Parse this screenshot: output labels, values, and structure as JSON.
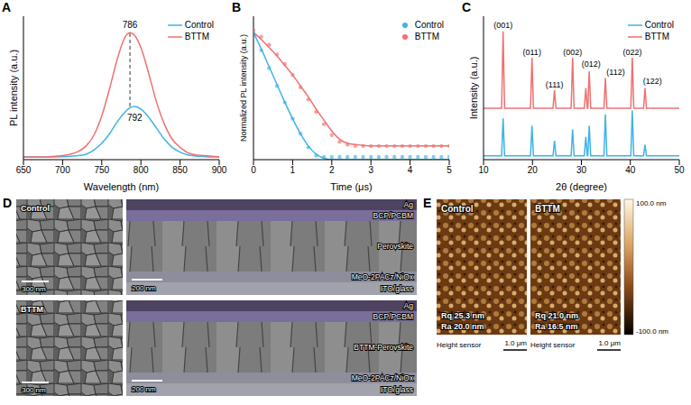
{
  "chart_data": [
    {
      "panel": "A",
      "type": "line",
      "x_label": "Wavelength (nm)",
      "y_label": "PL intensity (a.u.)",
      "x": [
        650,
        660,
        670,
        680,
        690,
        700,
        710,
        720,
        730,
        740,
        750,
        760,
        770,
        780,
        786,
        792,
        800,
        810,
        820,
        830,
        840,
        850,
        860,
        870,
        880,
        890,
        900
      ],
      "series": [
        {
          "name": "Control",
          "color": "#3fb3e6",
          "values": [
            0.02,
            0.02,
            0.02,
            0.02,
            0.02,
            0.022,
            0.025,
            0.03,
            0.04,
            0.07,
            0.12,
            0.19,
            0.28,
            0.35,
            0.38,
            0.39,
            0.37,
            0.31,
            0.23,
            0.15,
            0.09,
            0.055,
            0.035,
            0.027,
            0.023,
            0.02,
            0.02
          ]
        },
        {
          "name": "BTTM",
          "color": "#f07070",
          "values": [
            0.02,
            0.02,
            0.02,
            0.02,
            0.025,
            0.03,
            0.04,
            0.06,
            0.1,
            0.18,
            0.32,
            0.52,
            0.74,
            0.9,
            0.93,
            0.91,
            0.82,
            0.63,
            0.42,
            0.26,
            0.15,
            0.09,
            0.05,
            0.035,
            0.03,
            0.025,
            0.02
          ]
        }
      ],
      "xlim": [
        650,
        900
      ],
      "xticks": [
        650,
        700,
        750,
        800,
        850,
        900
      ],
      "ylim": [
        0,
        1.05
      ],
      "yticks": [],
      "tick_labels": "x",
      "legend": "upper right",
      "annotations": [
        {
          "text": "786",
          "x": 786,
          "y": 0.99
        },
        {
          "text": "792",
          "x": 792,
          "y": 0.31
        }
      ]
    },
    {
      "panel": "B",
      "type": "scatter",
      "x_label": "Time (μs)",
      "y_label": "Normalized PL intensity (a.u.)",
      "x": [
        0,
        0.2,
        0.4,
        0.6,
        0.8,
        1,
        1.2,
        1.4,
        1.6,
        1.8,
        2,
        2.2,
        2.4,
        2.6,
        2.8,
        3,
        3.2,
        3.4,
        3.6,
        3.8,
        4,
        4.2,
        4.4,
        4.6,
        4.8,
        5
      ],
      "series": [
        {
          "name": "Control",
          "color": "#3fb3e6",
          "marker": "circle",
          "values": [
            0.93,
            0.8,
            0.67,
            0.54,
            0.42,
            0.3,
            0.19,
            0.09,
            0.03,
            0.02,
            0.02,
            0.02,
            0.02,
            0.02,
            0.02,
            0.02,
            0.02,
            0.02,
            0.02,
            0.02,
            0.02,
            0.02,
            0.02,
            0.02,
            0.02,
            0.02
          ],
          "fit": [
            0.93,
            0.81,
            0.68,
            0.55,
            0.42,
            0.3,
            0.19,
            0.1,
            0.04,
            0.01,
            0,
            0,
            0,
            0,
            0,
            0,
            0,
            0,
            0,
            0,
            0,
            0,
            0,
            0,
            0,
            0
          ]
        },
        {
          "name": "BTTM",
          "color": "#f07070",
          "marker": "circle",
          "values": [
            0.95,
            0.9,
            0.84,
            0.77,
            0.7,
            0.62,
            0.53,
            0.44,
            0.35,
            0.26,
            0.18,
            0.13,
            0.11,
            0.1,
            0.1,
            0.1,
            0.1,
            0.1,
            0.1,
            0.1,
            0.1,
            0.1,
            0.1,
            0.1,
            0.1,
            0.1
          ],
          "fit": [
            0.93,
            0.88,
            0.82,
            0.76,
            0.69,
            0.62,
            0.54,
            0.46,
            0.37,
            0.29,
            0.21,
            0.15,
            0.12,
            0.11,
            0.105,
            0.1,
            0.1,
            0.1,
            0.1,
            0.1,
            0.1,
            0.1,
            0.1,
            0.1,
            0.1,
            0.1
          ]
        }
      ],
      "xlim": [
        0,
        5
      ],
      "xticks": [
        0,
        1,
        2,
        3,
        4,
        5
      ],
      "ylim": [
        0,
        1.05
      ],
      "yticks": [],
      "tick_labels": "x",
      "legend": "upper right"
    },
    {
      "panel": "C",
      "type": "line",
      "x_label": "2θ (degree)",
      "y_label": "Intensity (a.u.)",
      "x": [
        10,
        13.7,
        14.0,
        14.3,
        19.6,
        19.9,
        20.2,
        24.2,
        24.5,
        24.8,
        27.9,
        28.2,
        28.5,
        30.6,
        30.9,
        31.2,
        31.3,
        31.6,
        31.9,
        34.6,
        34.9,
        35.2,
        40.1,
        40.4,
        40.7,
        42.7,
        43.0,
        43.3,
        50
      ],
      "series": [
        {
          "name": "Control",
          "color": "#3fb3e6",
          "values": [
            5,
            5,
            55,
            5,
            5,
            45,
            5,
            5,
            25,
            5,
            5,
            40,
            5,
            5,
            30,
            5,
            5,
            45,
            5,
            5,
            60,
            5,
            5,
            65,
            5,
            5,
            20,
            5,
            5
          ]
        },
        {
          "name": "BTTM",
          "color": "#f07070",
          "values": [
            68,
            68,
            170,
            68,
            68,
            135,
            68,
            68,
            92,
            68,
            68,
            135,
            68,
            68,
            95,
            68,
            68,
            117,
            68,
            68,
            108,
            68,
            68,
            135,
            68,
            68,
            95,
            68,
            68
          ]
        }
      ],
      "xlim": [
        10,
        50
      ],
      "xticks": [
        10,
        20,
        30,
        40,
        50
      ],
      "ylim": [
        0,
        190
      ],
      "yticks": [],
      "tick_labels": "x",
      "legend": "upper right",
      "annotations": [
        {
          "text": "(001)",
          "x": 14,
          "y": 178
        },
        {
          "text": "(011)",
          "x": 19.9,
          "y": 143
        },
        {
          "text": "(111)",
          "x": 24.5,
          "y": 100
        },
        {
          "text": "(002)",
          "x": 28.2,
          "y": 143
        },
        {
          "text": "(012)",
          "x": 32,
          "y": 127
        },
        {
          "text": "(112)",
          "x": 37,
          "y": 116
        },
        {
          "text": "(022)",
          "x": 40.4,
          "y": 143
        },
        {
          "text": "(122)",
          "x": 44.5,
          "y": 104
        }
      ]
    }
  ],
  "images": [
    {
      "panel": "D",
      "type": "SEM",
      "top_view": [
        {
          "label": "Control",
          "scale_bar": "300 nm"
        },
        {
          "label": "BTTM",
          "scale_bar": "300 nm"
        }
      ],
      "cross_section": [
        {
          "scale_bar": "200 nm",
          "layers": [
            "Ag",
            "BCP/PCBM",
            "Perovskite",
            "MeO-2PACz/NiOx",
            "ITO/glass"
          ]
        },
        {
          "scale_bar": "200 nm",
          "layers": [
            "Ag",
            "BCP/PCBM",
            "BTTM-Perovskite",
            "MeO-2PACz/NiOx",
            "ITO/glass"
          ]
        }
      ]
    },
    {
      "panel": "E",
      "type": "AFM",
      "maps": [
        {
          "label": "Control",
          "rq": "Rq 25.3 nm",
          "ra": "Ra 20.0 nm",
          "channel": "Height sensor",
          "scale_bar": "1.0 μm"
        },
        {
          "label": "BTTM",
          "rq": "Rq 21.0 nm",
          "ra": "Ra 16.5 nm",
          "channel": "Height sensor",
          "scale_bar": "1.0 μm"
        }
      ],
      "color_bar": {
        "range": [
          -100,
          100
        ],
        "ticks": [
          {
            "value": 100,
            "label": "100.0 nm"
          },
          {
            "value": -100,
            "label": "-100.0 nm"
          }
        ]
      }
    }
  ]
}
